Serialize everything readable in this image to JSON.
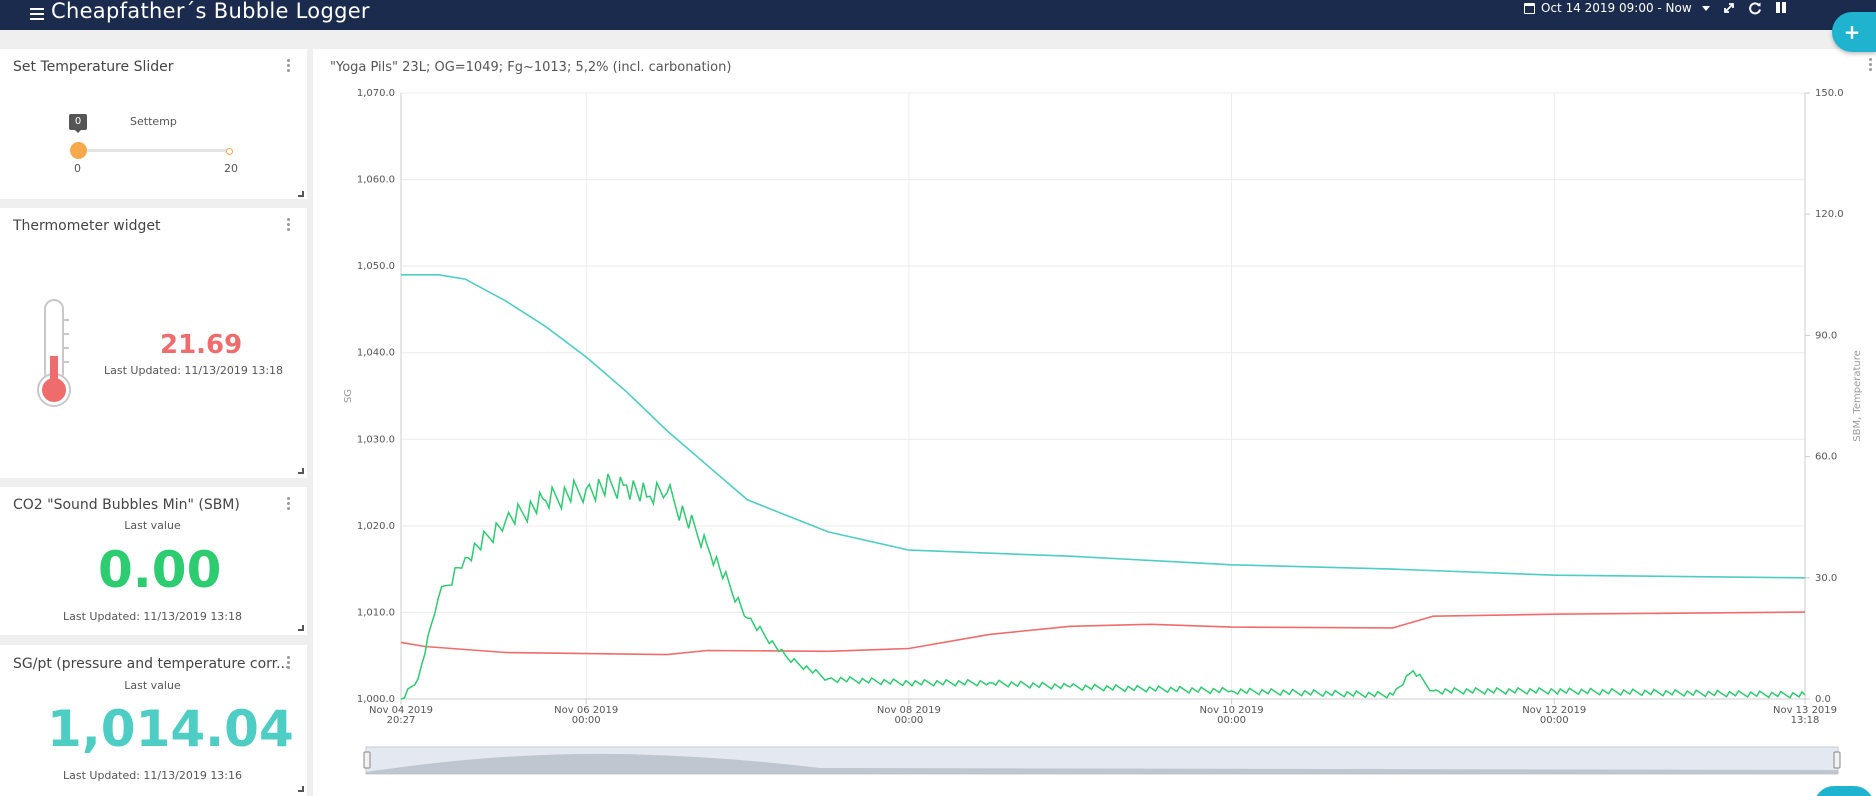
{
  "header": {
    "title": "Cheapfather´s Bubble Logger",
    "date_range": "Oct 14 2019 09:00 - Now"
  },
  "colors": {
    "header_bg": "#1b2b4e",
    "accent": "#1fb3cf",
    "sg_line": "#4ecdc4",
    "temp_line": "#f06c6c",
    "sbm_line": "#2ecc71",
    "slider": "#f6a94a"
  },
  "widgets": {
    "slider": {
      "title": "Set Temperature Slider",
      "label": "Settemp",
      "value": "0",
      "min": "0",
      "max": "20"
    },
    "thermometer": {
      "title": "Thermometer widget",
      "value": "21.69",
      "updated": "Last Updated: 11/13/2019 13:18"
    },
    "co2": {
      "title": "CO2 \"Sound Bubbles Min\" (SBM)",
      "subtitle": "Last value",
      "value": "0.00",
      "updated": "Last Updated: 11/13/2019 13:18"
    },
    "sg": {
      "title": "SG/pt (pressure and temperature corr...",
      "subtitle": "Last value",
      "value": "1,014.04",
      "updated": "Last Updated: 11/13/2019 13:16"
    }
  },
  "chart_data": {
    "type": "line",
    "title": "\"Yoga Pils\" 23L; OG=1049; Fg~1013; 5,2% (incl. carbonation)",
    "ylabel": "SG",
    "y2label": "SBM, Temperature",
    "ylim": [
      1000,
      1070
    ],
    "y2lim": [
      0,
      150
    ],
    "xlim": [
      "2019-11-04 20:27",
      "2019-11-13 13:18"
    ],
    "y_ticks": [
      "1,000.0",
      "1,010.0",
      "1,020.0",
      "1,030.0",
      "1,040.0",
      "1,050.0",
      "1,060.0",
      "1,070.0"
    ],
    "y2_ticks": [
      "0.0",
      "30.0",
      "60.0",
      "90.0",
      "120.0",
      "150.0"
    ],
    "x_ticks": [
      {
        "date": "Nov 04 2019",
        "time": "20:27"
      },
      {
        "date": "Nov 06 2019",
        "time": "00:00"
      },
      {
        "date": "Nov 08 2019",
        "time": "00:00"
      },
      {
        "date": "Nov 10 2019",
        "time": "00:00"
      },
      {
        "date": "Nov 12 2019",
        "time": "00:00"
      },
      {
        "date": "Nov 13 2019",
        "time": "13:18"
      }
    ],
    "series": [
      {
        "axis": "left",
        "color": "#4ecdc4",
        "x": [
          "2019-11-04 20:27",
          "2019-11-05 02:00",
          "2019-11-05 06:00",
          "2019-11-05 12:00",
          "2019-11-05 18:00",
          "2019-11-06 00:00",
          "2019-11-06 06:00",
          "2019-11-06 12:00",
          "2019-11-06 18:00",
          "2019-11-07 00:00",
          "2019-11-07 12:00",
          "2019-11-08 00:00",
          "2019-11-09 00:00",
          "2019-11-10 00:00",
          "2019-11-11 00:00",
          "2019-11-12 00:00",
          "2019-11-13 13:18"
        ],
        "values": [
          1049,
          1049,
          1048.5,
          1046,
          1043,
          1039.5,
          1035.5,
          1031,
          1027,
          1023,
          1019.3,
          1017.2,
          1016.5,
          1015.5,
          1015,
          1014.3,
          1014
        ]
      },
      {
        "axis": "right",
        "color": "#f06c6c",
        "x": [
          "2019-11-04 20:27",
          "2019-11-05 00:00",
          "2019-11-05 12:00",
          "2019-11-06 12:00",
          "2019-11-06 18:00",
          "2019-11-07 12:00",
          "2019-11-08 00:00",
          "2019-11-08 12:00",
          "2019-11-09 00:00",
          "2019-11-09 12:00",
          "2019-11-10 00:00",
          "2019-11-11 00:00",
          "2019-11-11 06:00",
          "2019-11-12 00:00",
          "2019-11-13 13:18"
        ],
        "values": [
          14,
          13,
          11.5,
          11,
          12,
          11.8,
          12.5,
          16,
          18,
          18.5,
          17.8,
          17.6,
          20.5,
          21,
          21.5
        ]
      },
      {
        "axis": "right",
        "color": "#2ecc71",
        "x": [
          "2019-11-04 20:27",
          "2019-11-04 23:00",
          "2019-11-05 02:00",
          "2019-11-05 06:00",
          "2019-11-05 12:00",
          "2019-11-05 18:00",
          "2019-11-06 00:00",
          "2019-11-06 06:00",
          "2019-11-06 09:00",
          "2019-11-06 12:00",
          "2019-11-06 18:00",
          "2019-11-07 00:00",
          "2019-11-07 06:00",
          "2019-11-07 12:00",
          "2019-11-08 00:00",
          "2019-11-08 12:00",
          "2019-11-09 00:00",
          "2019-11-10 00:00",
          "2019-11-11 00:00",
          "2019-11-11 03:00",
          "2019-11-11 06:00",
          "2019-11-12 00:00",
          "2019-11-13 13:18"
        ],
        "values": [
          0,
          5,
          25,
          35,
          44,
          49,
          52,
          53,
          50,
          51,
          38,
          20,
          10,
          5,
          4,
          4,
          3,
          2,
          1,
          7,
          2,
          2,
          1
        ]
      }
    ]
  }
}
